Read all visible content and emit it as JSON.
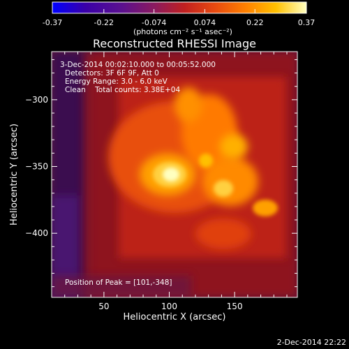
{
  "colorbar": {
    "tick_labels": [
      "-0.37",
      "-0.22",
      "-0.074",
      "0.074",
      "0.22",
      "0.37"
    ],
    "tick_values": [
      -0.37,
      -0.22,
      -0.074,
      0.074,
      0.22,
      0.37
    ],
    "range": [
      -0.37,
      0.37
    ],
    "units_label": "(photons cm⁻² s⁻¹ asec⁻²)",
    "colormap_stops": [
      "#0000ff",
      "#3a00a8",
      "#5a1090",
      "#8a1a60",
      "#c02020",
      "#e84a10",
      "#ff8000",
      "#ffc000",
      "#ffffc0"
    ]
  },
  "chart_data": {
    "type": "heatmap",
    "title": "Reconstructed RHESSI Image",
    "xlabel": "Heliocentric X (arcsec)",
    "ylabel": "Heliocentric Y (arcsec)",
    "xlim": [
      10,
      198
    ],
    "ylim": [
      -448,
      -264
    ],
    "x_ticks": [
      50,
      100,
      150
    ],
    "x_tick_labels": [
      "50",
      "100",
      "150"
    ],
    "y_ticks": [
      -300,
      -350,
      -400
    ],
    "y_tick_labels": [
      "−300",
      "−350",
      "−400"
    ],
    "peak": [
      101,
      -348
    ],
    "annotations": {
      "time_range": "3-Dec-2014 00:02:10.000 to 00:05:52.000",
      "detectors": "Detectors: 3F 6F 9F, Att 0",
      "energy": "Energy Range: 3.0 - 6.0 keV",
      "clean": "Clean    Total counts: 3.38E+04",
      "peak_label": "Position of Peak = [101,-348]"
    }
  },
  "footer": {
    "date_stamp": "2-Dec-2014 22:22"
  }
}
